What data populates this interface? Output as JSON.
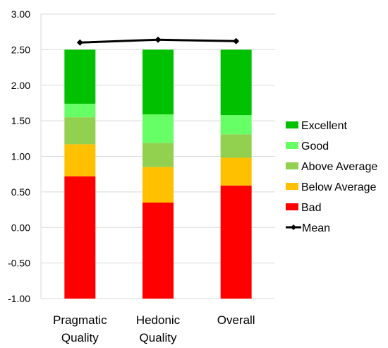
{
  "chart_data": {
    "type": "bar",
    "stacked": true,
    "categories": [
      [
        "Pragmatic",
        "Quality"
      ],
      [
        "Hedonic",
        "Quality"
      ],
      [
        "Overall"
      ]
    ],
    "ylim": [
      -1.0,
      3.0
    ],
    "yticks": [
      "-1.00",
      "-0.50",
      "0.00",
      "0.50",
      "1.00",
      "1.50",
      "2.00",
      "2.50",
      "3.00"
    ],
    "grid": true,
    "legend_position": "right",
    "baseline": -1.0,
    "series": [
      {
        "name": "Bad",
        "color": "#ff0000",
        "tops": [
          0.72,
          0.35,
          0.59
        ]
      },
      {
        "name": "Below Average",
        "color": "#ffc000",
        "tops": [
          1.17,
          0.85,
          0.98
        ]
      },
      {
        "name": "Above Average",
        "color": "#92d050",
        "tops": [
          1.55,
          1.19,
          1.31
        ]
      },
      {
        "name": "Good",
        "color": "#66ff66",
        "tops": [
          1.74,
          1.59,
          1.58
        ]
      },
      {
        "name": "Excellent",
        "color": "#00c000",
        "tops": [
          2.5,
          2.5,
          2.5
        ]
      }
    ],
    "mean": {
      "name": "Mean",
      "color": "#000000",
      "values": [
        2.6,
        2.64,
        2.62
      ]
    },
    "legend_order": [
      "Excellent",
      "Good",
      "Above Average",
      "Below Average",
      "Bad",
      "Mean"
    ]
  }
}
